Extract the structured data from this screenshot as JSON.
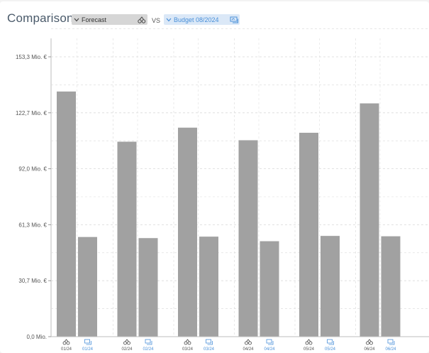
{
  "header": {
    "title": "Comparison",
    "left_scenario": {
      "label": "Forecast",
      "icon": "forecast-icon"
    },
    "vs_label": "VS",
    "right_scenario": {
      "label": "Budget 08/2024",
      "icon": "budget-icon"
    }
  },
  "colors": {
    "bar": "#a1a1a1",
    "grid": "#d9d9d9",
    "accent_blue": "#4a90d9",
    "forecast_select_bg": "#d6d6d6",
    "budget_select_bg": "#dbe8f7"
  },
  "chart_data": {
    "type": "bar",
    "categories": [
      "01/24",
      "02/24",
      "03/24",
      "04/24",
      "05/24",
      "06/24"
    ],
    "series": [
      {
        "name": "Forecast",
        "values": [
          134.3,
          106.8,
          114.5,
          107.6,
          111.7,
          127.8
        ]
      },
      {
        "name": "Budget 08/2024",
        "values": [
          54.6,
          54.0,
          54.8,
          52.3,
          55.2,
          55.0
        ]
      }
    ],
    "yticks": [
      "0,0 Mio.",
      "30,7 Mio. €",
      "61,3 Mio. €",
      "92,0 Mio. €",
      "122,7 Mio. €",
      "153,3 Mio. €"
    ],
    "ylim": [
      0,
      153.3
    ],
    "grid": true
  }
}
